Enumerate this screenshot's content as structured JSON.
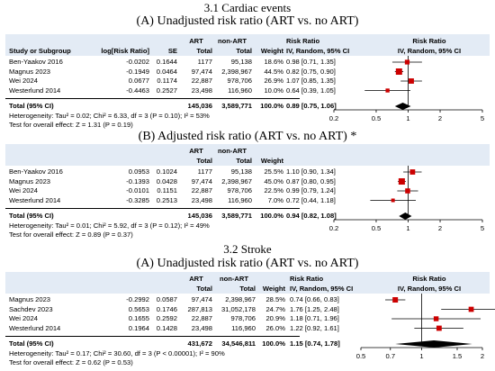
{
  "section_titles": {
    "cardiac": "3.1 Cardiac events",
    "stroke": "3.2 Stroke"
  },
  "columns": {
    "study": "Study or Subgroup",
    "logrr": "log[Risk Ratio]",
    "se": "SE",
    "art": "ART",
    "nonart": "non-ART",
    "total": "Total",
    "weight": "Weight",
    "rr": "Risk Ratio",
    "rr_method": "IV, Random, 95% CI"
  },
  "panels": [
    {
      "title": "(A) Unadjusted risk ratio (ART vs. no ART)",
      "rows": [
        {
          "study": "Ben-Yaakov 2016",
          "logrr": "-0.0202",
          "se": "0.1644",
          "art": "1177",
          "nonart": "95,138",
          "weight": "18.6%",
          "ci": "0.98 [0.71, 1.35]"
        },
        {
          "study": "Magnus 2023",
          "logrr": "-0.1949",
          "se": "0.0464",
          "art": "97,474",
          "nonart": "2,398,967",
          "weight": "44.5%",
          "ci": "0.82 [0.75, 0.90]"
        },
        {
          "study": "Wei 2024",
          "logrr": "0.0677",
          "se": "0.1174",
          "art": "22,887",
          "nonart": "978,706",
          "weight": "26.9%",
          "ci": "1.07 [0.85, 1.35]"
        },
        {
          "study": "Westerlund 2014",
          "logrr": "-0.4463",
          "se": "0.2527",
          "art": "23,498",
          "nonart": "116,960",
          "weight": "10.0%",
          "ci": "0.64 [0.39, 1.05]"
        }
      ],
      "total": {
        "label": "Total (95% CI)",
        "art": "145,036",
        "nonart": "3,589,771",
        "weight": "100.0%",
        "ci": "0.89 [0.75, 1.06]"
      },
      "heterogeneity": "Heterogeneity: Tau² = 0.02; Chi² = 6.33, df = 3 (P = 0.10); I² = 53%",
      "overall": "Test for overall effect: Z = 1.31 (P = 0.19)"
    },
    {
      "title": "(B) Adjusted risk ratio (ART vs. no ART) *",
      "rows": [
        {
          "study": "Ben-Yaakov 2016",
          "logrr": "0.0953",
          "se": "0.1024",
          "art": "1177",
          "nonart": "95,138",
          "weight": "25.5%",
          "ci": "1.10 [0.90, 1.34]"
        },
        {
          "study": "Magnus 2023",
          "logrr": "-0.1393",
          "se": "0.0428",
          "art": "97,474",
          "nonart": "2,398,967",
          "weight": "45.0%",
          "ci": "0.87 [0.80, 0.95]"
        },
        {
          "study": "Wei 2024",
          "logrr": "-0.0101",
          "se": "0.1151",
          "art": "22,887",
          "nonart": "978,706",
          "weight": "22.5%",
          "ci": "0.99 [0.79, 1.24]"
        },
        {
          "study": "Westerlund 2014",
          "logrr": "-0.3285",
          "se": "0.2513",
          "art": "23,498",
          "nonart": "116,960",
          "weight": "7.0%",
          "ci": "0.72 [0.44, 1.18]"
        }
      ],
      "total": {
        "label": "Total (95% CI)",
        "art": "145,036",
        "nonart": "3,589,771",
        "weight": "100.0%",
        "ci": "0.94 [0.82, 1.08]"
      },
      "heterogeneity": "Heterogeneity: Tau² = 0.01; Chi² = 5.92, df = 3 (P = 0.12); I² = 49%",
      "overall": "Test for overall effect: Z = 0.89 (P = 0.37)"
    },
    {
      "title": "(A) Unadjusted risk ratio (ART vs. no ART)",
      "rows": [
        {
          "study": "Magnus 2023",
          "logrr": "-0.2992",
          "se": "0.0587",
          "art": "97,474",
          "nonart": "2,398,967",
          "weight": "28.5%",
          "ci": "0.74 [0.66, 0.83]"
        },
        {
          "study": "Sachdev 2023",
          "logrr": "0.5653",
          "se": "0.1746",
          "art": "287,813",
          "nonart": "31,052,178",
          "weight": "24.7%",
          "ci": "1.76 [1.25, 2.48]"
        },
        {
          "study": "Wei 2024",
          "logrr": "0.1655",
          "se": "0.2592",
          "art": "22,887",
          "nonart": "978,706",
          "weight": "20.9%",
          "ci": "1.18 [0.71, 1.96]"
        },
        {
          "study": "Westerlund 2014",
          "logrr": "0.1964",
          "se": "0.1428",
          "art": "23,498",
          "nonart": "116,960",
          "weight": "26.0%",
          "ci": "1.22 [0.92, 1.61]"
        }
      ],
      "total": {
        "label": "Total (95% CI)",
        "art": "431,672",
        "nonart": "34,546,811",
        "weight": "100.0%",
        "ci": "1.15 [0.74, 1.78]"
      },
      "heterogeneity": "Heterogeneity: Tau² = 0.17; Chi² = 30.60, df = 3 (P < 0.00001); I² = 90%",
      "overall": "Test for overall effect: Z = 0.62 (P = 0.53)"
    }
  ],
  "colors": {
    "header_bg": "#e3ebf5",
    "study_marker": "#cc0000",
    "total_marker": "#000000"
  },
  "chart_data": [
    {
      "type": "scatter",
      "subtype": "forest",
      "title": "(A) Unadjusted risk ratio (ART vs. no ART)",
      "scale": "log",
      "xlim": [
        0.2,
        5
      ],
      "ticks": [
        0.2,
        0.5,
        1,
        2,
        5
      ],
      "reference_line": 1,
      "studies": [
        {
          "name": "Ben-Yaakov 2016",
          "rr": 0.98,
          "lo": 0.71,
          "hi": 1.35,
          "weight": 18.6
        },
        {
          "name": "Magnus 2023",
          "rr": 0.82,
          "lo": 0.75,
          "hi": 0.9,
          "weight": 44.5
        },
        {
          "name": "Wei 2024",
          "rr": 1.07,
          "lo": 0.85,
          "hi": 1.35,
          "weight": 26.9
        },
        {
          "name": "Westerlund 2014",
          "rr": 0.64,
          "lo": 0.39,
          "hi": 1.05,
          "weight": 10.0
        }
      ],
      "pooled": {
        "rr": 0.89,
        "lo": 0.75,
        "hi": 1.06
      }
    },
    {
      "type": "scatter",
      "subtype": "forest",
      "title": "(B) Adjusted risk ratio (ART vs. no ART) *",
      "scale": "log",
      "xlim": [
        0.2,
        5
      ],
      "ticks": [
        0.2,
        0.5,
        1,
        2,
        5
      ],
      "reference_line": 1,
      "studies": [
        {
          "name": "Ben-Yaakov 2016",
          "rr": 1.1,
          "lo": 0.9,
          "hi": 1.34,
          "weight": 25.5
        },
        {
          "name": "Magnus 2023",
          "rr": 0.87,
          "lo": 0.8,
          "hi": 0.95,
          "weight": 45.0
        },
        {
          "name": "Wei 2024",
          "rr": 0.99,
          "lo": 0.79,
          "hi": 1.24,
          "weight": 22.5
        },
        {
          "name": "Westerlund 2014",
          "rr": 0.72,
          "lo": 0.44,
          "hi": 1.18,
          "weight": 7.0
        }
      ],
      "pooled": {
        "rr": 0.94,
        "lo": 0.82,
        "hi": 1.08
      }
    },
    {
      "type": "scatter",
      "subtype": "forest",
      "title": "(A) Unadjusted risk ratio (ART vs. no ART)",
      "scale": "log",
      "xlim": [
        0.5,
        2
      ],
      "ticks": [
        0.5,
        0.7,
        1,
        1.5,
        2
      ],
      "reference_line": 1,
      "studies": [
        {
          "name": "Magnus 2023",
          "rr": 0.74,
          "lo": 0.66,
          "hi": 0.83,
          "weight": 28.5
        },
        {
          "name": "Sachdev 2023",
          "rr": 1.76,
          "lo": 1.25,
          "hi": 2.48,
          "weight": 24.7
        },
        {
          "name": "Wei 2024",
          "rr": 1.18,
          "lo": 0.71,
          "hi": 1.96,
          "weight": 20.9
        },
        {
          "name": "Westerlund 2014",
          "rr": 1.22,
          "lo": 0.92,
          "hi": 1.61,
          "weight": 26.0
        }
      ],
      "pooled": {
        "rr": 1.15,
        "lo": 0.74,
        "hi": 1.78
      }
    }
  ]
}
